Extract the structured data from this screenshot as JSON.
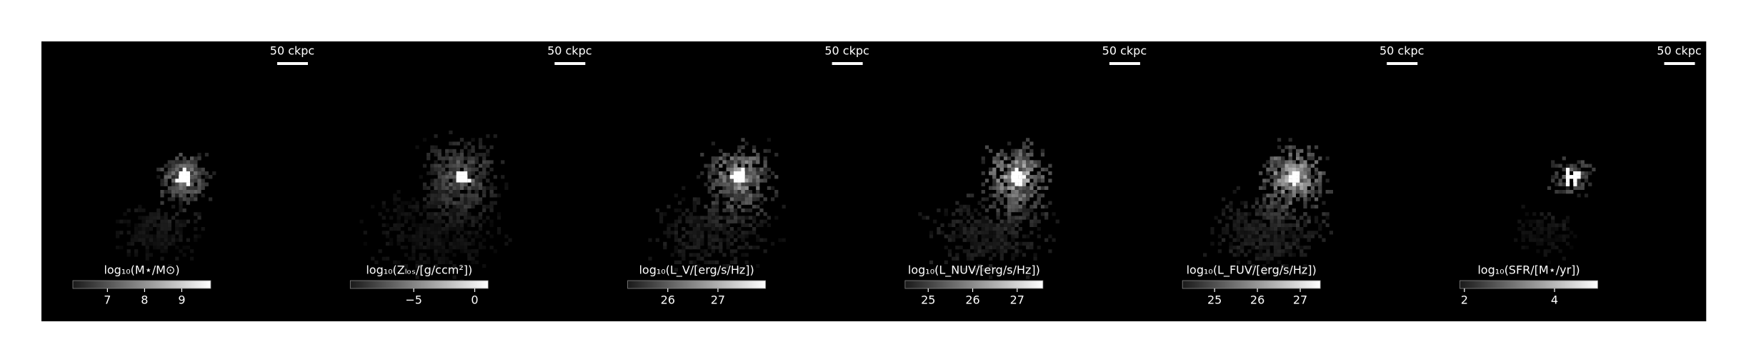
{
  "chart_data": [
    {
      "type": "image",
      "scale_label": "50 ckpc",
      "colorbar_label": "log₁₀(M⋆/M⊙)",
      "clim": [
        6.07,
        9.78
      ],
      "cticks": [
        7,
        8,
        9
      ]
    },
    {
      "type": "image",
      "scale_label": "50 ckpc",
      "colorbar_label": "log₁₀(Zₗₒₛ/[g/ccm²])",
      "clim": [
        -10.2,
        1.1
      ],
      "cticks": [
        {
          "value": -5,
          "label": "−5"
        },
        0
      ]
    },
    {
      "type": "image",
      "scale_label": "50 ckpc",
      "colorbar_label": "log₁₀(L_V/[erg/s/Hz])",
      "clim": [
        25.2,
        27.95
      ],
      "cticks": [
        26,
        27
      ]
    },
    {
      "type": "image",
      "scale_label": "50 ckpc",
      "colorbar_label": "log₁₀(L_NUV/[erg/s/Hz])",
      "clim": [
        24.48,
        27.58
      ],
      "cticks": [
        25,
        26,
        27
      ]
    },
    {
      "type": "image",
      "scale_label": "50 ckpc",
      "colorbar_label": "log₁₀(L_FUV/[erg/s/Hz])",
      "clim": [
        24.25,
        27.47
      ],
      "cticks": [
        25,
        26,
        27
      ]
    },
    {
      "type": "image",
      "scale_label": "50 ckpc",
      "colorbar_label": "log₁₀(SFR/[M⋆/yr])",
      "clim": [
        1.9,
        4.96
      ],
      "cticks": [
        2,
        4
      ]
    }
  ]
}
